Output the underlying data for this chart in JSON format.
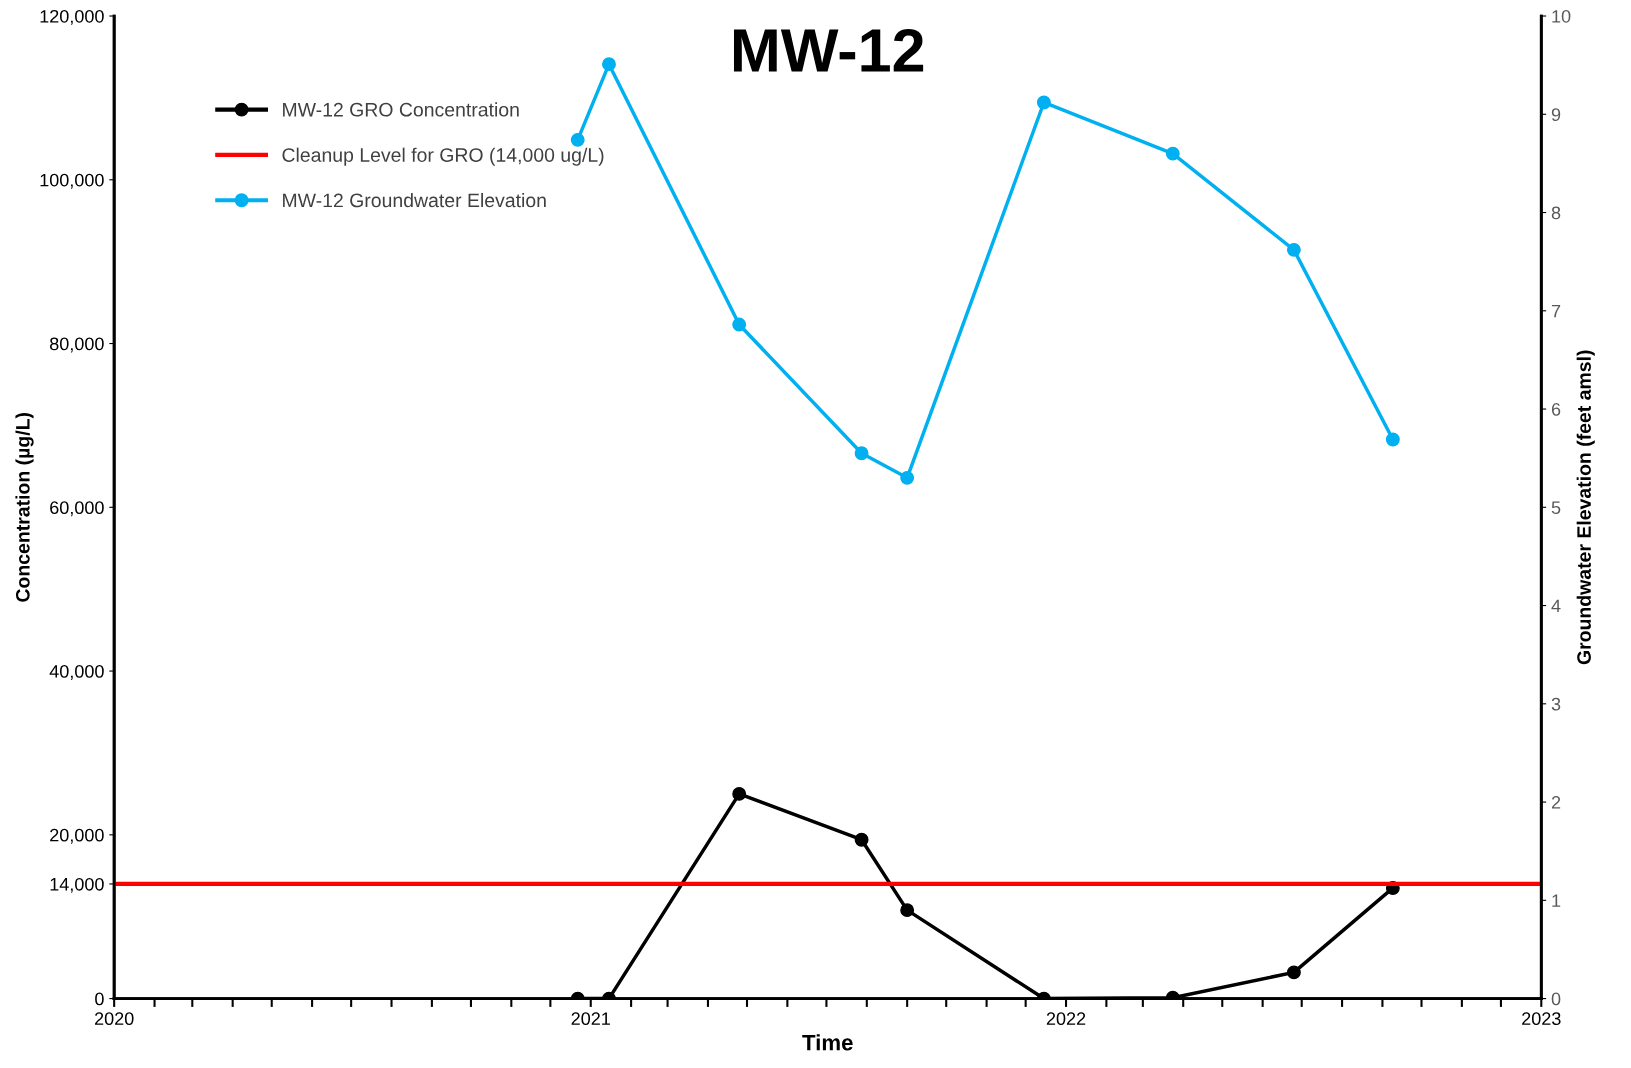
{
  "chart_data": {
    "type": "line",
    "title": "MW-12",
    "xlabel": "Time",
    "ylabel": "Concentration (µg/L)",
    "y2label": "Groundwater Elevation (feet amsl)",
    "x": [
      "2020-12-22",
      "2021-01-15",
      "2021-04-25",
      "2021-07-28",
      "2021-09-01",
      "2021-12-15",
      "2022-03-24",
      "2022-06-25",
      "2022-09-09"
    ],
    "series": [
      {
        "name": "MW-12 GRO Concentration",
        "color": "#000000",
        "marker": "circle",
        "values": [
          0,
          0,
          25000,
          19400,
          10800,
          0,
          100,
          3200,
          13500
        ]
      },
      {
        "name": "Cleanup Level for GRO (14,000 ug/L)",
        "color": "#ff0000",
        "marker": "none",
        "x": [
          "2020",
          "2023"
        ],
        "values": [
          14000,
          14000
        ]
      },
      {
        "name": "MW-12 Groundwater Elevation",
        "color": "#00b0f0",
        "marker": "circle",
        "axis": "y2",
        "values": [
          8.74,
          9.51,
          6.86,
          5.55,
          5.3,
          9.12,
          8.6,
          7.62,
          5.69
        ]
      }
    ],
    "xlim": [
      "2020",
      "2023"
    ],
    "xticks": [
      "2020",
      {
        "value": "2020-02",
        "label": null
      },
      {
        "value": "2020-03",
        "label": null
      },
      {
        "value": "2020-04",
        "label": null
      },
      {
        "value": "2020-05",
        "label": null
      },
      {
        "value": "2020-06",
        "label": null
      },
      {
        "value": "2020-07",
        "label": null
      },
      {
        "value": "2020-08",
        "label": null
      },
      {
        "value": "2020-09",
        "label": null
      },
      {
        "value": "2020-10",
        "label": null
      },
      {
        "value": "2020-11",
        "label": null
      },
      {
        "value": "2020-12",
        "label": null
      },
      "2021",
      {
        "value": "2021-02",
        "label": null
      },
      {
        "value": "2021-03",
        "label": null
      },
      {
        "value": "2021-04",
        "label": null
      },
      {
        "value": "2021-05",
        "label": null
      },
      {
        "value": "2021-06",
        "label": null
      },
      {
        "value": "2021-07",
        "label": null
      },
      {
        "value": "2021-08",
        "label": null
      },
      {
        "value": "2021-09",
        "label": null
      },
      {
        "value": "2021-10",
        "label": null
      },
      {
        "value": "2021-11",
        "label": null
      },
      {
        "value": "2021-12",
        "label": null
      },
      "2022",
      {
        "value": "2022-02",
        "label": null
      },
      {
        "value": "2022-03",
        "label": null
      },
      {
        "value": "2022-04",
        "label": null
      },
      {
        "value": "2022-05",
        "label": null
      },
      {
        "value": "2022-06",
        "label": null
      },
      {
        "value": "2022-07",
        "label": null
      },
      {
        "value": "2022-08",
        "label": null
      },
      {
        "value": "2022-09",
        "label": null
      },
      {
        "value": "2022-10",
        "label": null
      },
      {
        "value": "2022-11",
        "label": null
      },
      {
        "value": "2022-12",
        "label": null
      },
      "2023"
    ],
    "ylim": [
      0,
      120000
    ],
    "yticks": [
      0,
      {
        "value": 14000,
        "label": "14,000"
      },
      {
        "value": 20000,
        "label": "20,000"
      },
      {
        "value": 40000,
        "label": "40,000"
      },
      {
        "value": 60000,
        "label": "60,000"
      },
      {
        "value": 80000,
        "label": "80,000"
      },
      {
        "value": 100000,
        "label": "100,000"
      },
      {
        "value": 120000,
        "label": "120,000"
      }
    ],
    "y2lim": [
      0,
      10
    ],
    "y2ticks": [
      0,
      1,
      2,
      3,
      4,
      5,
      6,
      7,
      8,
      9,
      10
    ],
    "grid": false,
    "legend": "top left",
    "line_style": "solid"
  }
}
